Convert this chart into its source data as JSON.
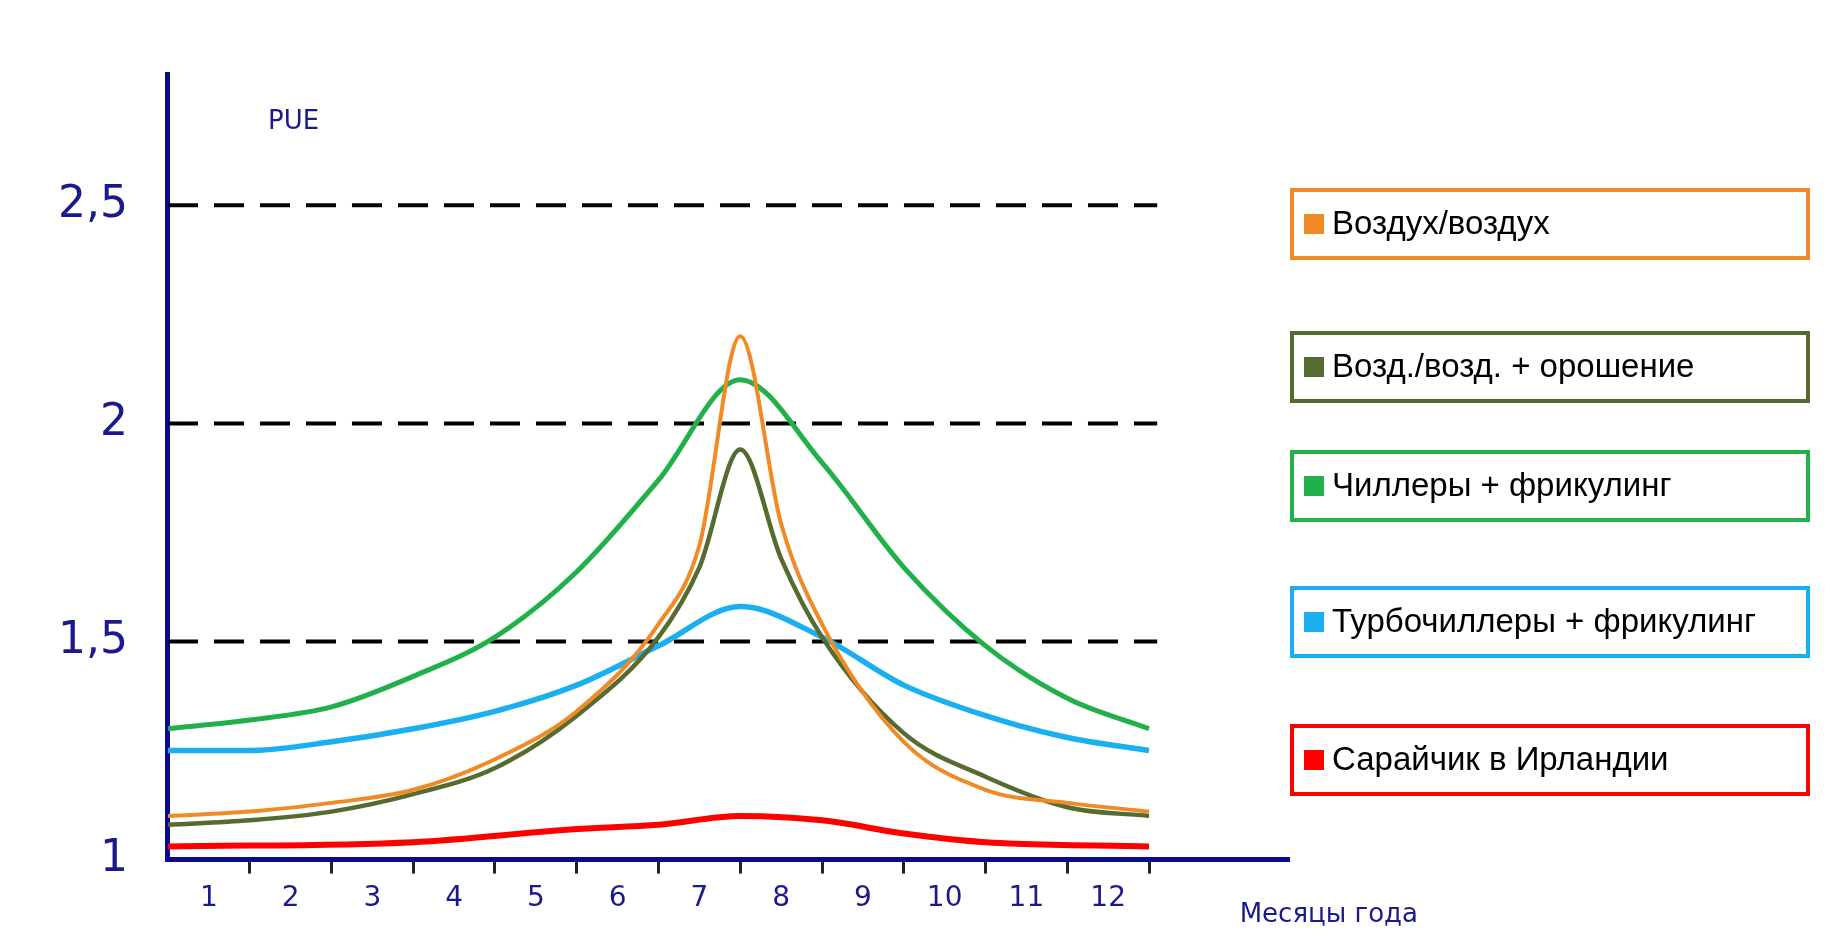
{
  "chart_data": {
    "type": "line",
    "ylabel": "PUE",
    "xlabel": "Месяцы года",
    "xlim": [
      0,
      13.7
    ],
    "ylim": [
      1,
      2.8
    ],
    "xticks": [
      {
        "value": 0.5,
        "label": "1"
      },
      {
        "value": 1,
        "label": null
      },
      {
        "value": 1.5,
        "label": "2"
      },
      {
        "value": 2,
        "label": null
      },
      {
        "value": 2.5,
        "label": "3"
      },
      {
        "value": 3,
        "label": null
      },
      {
        "value": 3.5,
        "label": "4"
      },
      {
        "value": 4,
        "label": null
      },
      {
        "value": 4.5,
        "label": "5"
      },
      {
        "value": 5,
        "label": null
      },
      {
        "value": 5.5,
        "label": "6"
      },
      {
        "value": 6,
        "label": null
      },
      {
        "value": 6.5,
        "label": "7"
      },
      {
        "value": 7,
        "label": null
      },
      {
        "value": 7.5,
        "label": "8"
      },
      {
        "value": 8,
        "label": null
      },
      {
        "value": 8.5,
        "label": "9"
      },
      {
        "value": 9,
        "label": null
      },
      {
        "value": 9.5,
        "label": "10"
      },
      {
        "value": 10,
        "label": null
      },
      {
        "value": 10.5,
        "label": "11"
      },
      {
        "value": 11,
        "label": null
      },
      {
        "value": 11.5,
        "label": "12"
      },
      {
        "value": 12,
        "label": null
      }
    ],
    "yticks": [
      {
        "value": 1,
        "label": "1"
      },
      {
        "value": 1.5,
        "label": "1,5"
      },
      {
        "value": 2,
        "label": "2"
      },
      {
        "value": 2.5,
        "label": "2,5"
      }
    ],
    "grid": false,
    "legend": "right",
    "marker": "none",
    "line_style": "solid",
    "ref_lines": [
      {
        "axis": "y",
        "value": 1.5,
        "color": "#000000",
        "line_style": "dashed"
      },
      {
        "axis": "y",
        "value": 2,
        "color": "#000000",
        "line_style": "dashed"
      },
      {
        "axis": "y",
        "value": 2.5,
        "color": "#000000",
        "line_style": "dashed"
      }
    ],
    "series": [
      {
        "name": "Воздух/воздух",
        "color": "#f08a24",
        "x": [
          0,
          1,
          2,
          3,
          4,
          5,
          6,
          6.5,
          7,
          7.5,
          8,
          9,
          10,
          11,
          12
        ],
        "values": [
          1.1,
          1.11,
          1.13,
          1.16,
          1.23,
          1.34,
          1.54,
          1.72,
          2.2,
          1.77,
          1.54,
          1.27,
          1.16,
          1.13,
          1.11
        ]
      },
      {
        "name": "Возд./возд. + орошение",
        "color": "#556b2f",
        "x": [
          0,
          1,
          2,
          3,
          4,
          5,
          6,
          6.5,
          7,
          7.5,
          8,
          9,
          10,
          11,
          12
        ],
        "values": [
          1.08,
          1.09,
          1.11,
          1.15,
          1.21,
          1.33,
          1.51,
          1.67,
          1.94,
          1.69,
          1.51,
          1.29,
          1.19,
          1.12,
          1.1
        ]
      },
      {
        "name": "Чиллеры + фрикулинг",
        "color": "#22b04b",
        "x": [
          0,
          1,
          2,
          3,
          4,
          5,
          6,
          7,
          8,
          9,
          10,
          11,
          12
        ],
        "values": [
          1.3,
          1.32,
          1.35,
          1.42,
          1.51,
          1.66,
          1.87,
          2.1,
          1.91,
          1.67,
          1.49,
          1.37,
          1.3
        ]
      },
      {
        "name": "Турбочиллеры + фрикулинг",
        "color": "#1ab0f0",
        "x": [
          0,
          1,
          2,
          3,
          4,
          5,
          6,
          7,
          8,
          9,
          10,
          11,
          12
        ],
        "values": [
          1.25,
          1.25,
          1.27,
          1.3,
          1.34,
          1.4,
          1.49,
          1.58,
          1.51,
          1.4,
          1.33,
          1.28,
          1.25
        ]
      },
      {
        "name": "Сарайчик в Ирландии",
        "color": "#ff0000",
        "x": [
          0,
          3,
          5,
          6,
          7,
          8,
          9,
          10,
          12
        ],
        "values": [
          1.03,
          1.04,
          1.07,
          1.08,
          1.1,
          1.09,
          1.06,
          1.04,
          1.03
        ]
      }
    ]
  }
}
